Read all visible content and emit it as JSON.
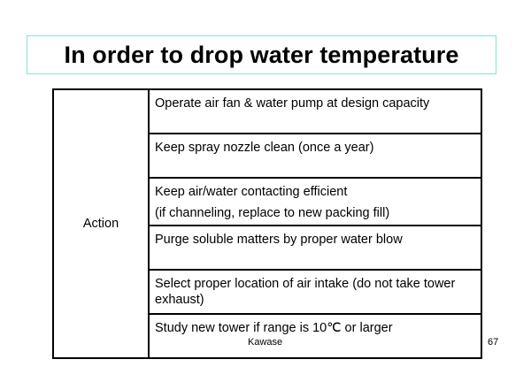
{
  "slide": {
    "title": "In order to drop water temperature",
    "table": {
      "row_header": "Action",
      "items": [
        {
          "lines": [
            "Operate air fan & water pump at design capacity"
          ]
        },
        {
          "lines": [
            "Keep spray nozzle clean (once a year)"
          ]
        },
        {
          "lines": [
            "Keep air/water contacting efficient",
            "(if channeling, replace to new packing fill)"
          ]
        },
        {
          "lines": [
            "Purge soluble matters by proper water blow"
          ]
        },
        {
          "lines": [
            "Select proper location of air intake (do not take tower exhaust)"
          ]
        },
        {
          "lines": [
            "Study new tower if range is 10℃ or larger"
          ]
        }
      ]
    },
    "footer": {
      "author": "Kawase",
      "page_number": "67"
    },
    "colors": {
      "title_border": "#7fe3d4",
      "table_border": "#000000",
      "text": "#000000",
      "background": "#ffffff"
    }
  }
}
